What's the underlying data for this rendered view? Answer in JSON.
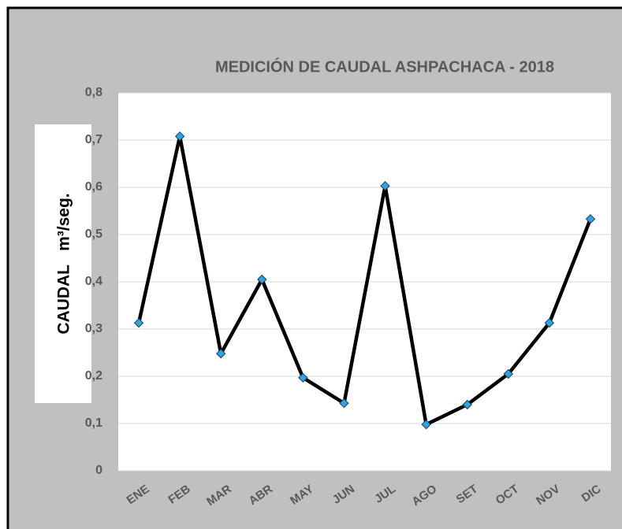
{
  "chart_data": {
    "type": "line",
    "title": "MEDICIÓN DE CAUDAL ASHPACHACA - 2018",
    "y_label": "CAUDAL   m³/seg.",
    "categories": [
      "ENE",
      "FEB",
      "MAR",
      "ABR",
      "MAY",
      "JUN",
      "JUL",
      "AGO",
      "SET",
      "OCT",
      "NOV",
      "DIC"
    ],
    "series": [
      {
        "name": "Caudal",
        "color": "#000000",
        "marker_color": "#2aa4e3",
        "values": [
          0.313,
          0.708,
          0.248,
          0.405,
          0.197,
          0.143,
          0.603,
          0.098,
          0.14,
          0.205,
          0.313,
          0.533
        ]
      }
    ],
    "ylim": [
      0,
      0.8
    ],
    "yticks": [
      0,
      {
        "value": 0.1,
        "label": "0,1"
      },
      {
        "value": 0.2,
        "label": "0,2"
      },
      {
        "value": 0.3,
        "label": "0,3"
      },
      {
        "value": 0.4,
        "label": "0,4"
      },
      {
        "value": 0.5,
        "label": "0,5"
      },
      {
        "value": 0.6,
        "label": "0,6"
      },
      {
        "value": 0.7,
        "label": "0,7"
      },
      {
        "value": 0.8,
        "label": "0,8"
      }
    ],
    "grid": true
  }
}
